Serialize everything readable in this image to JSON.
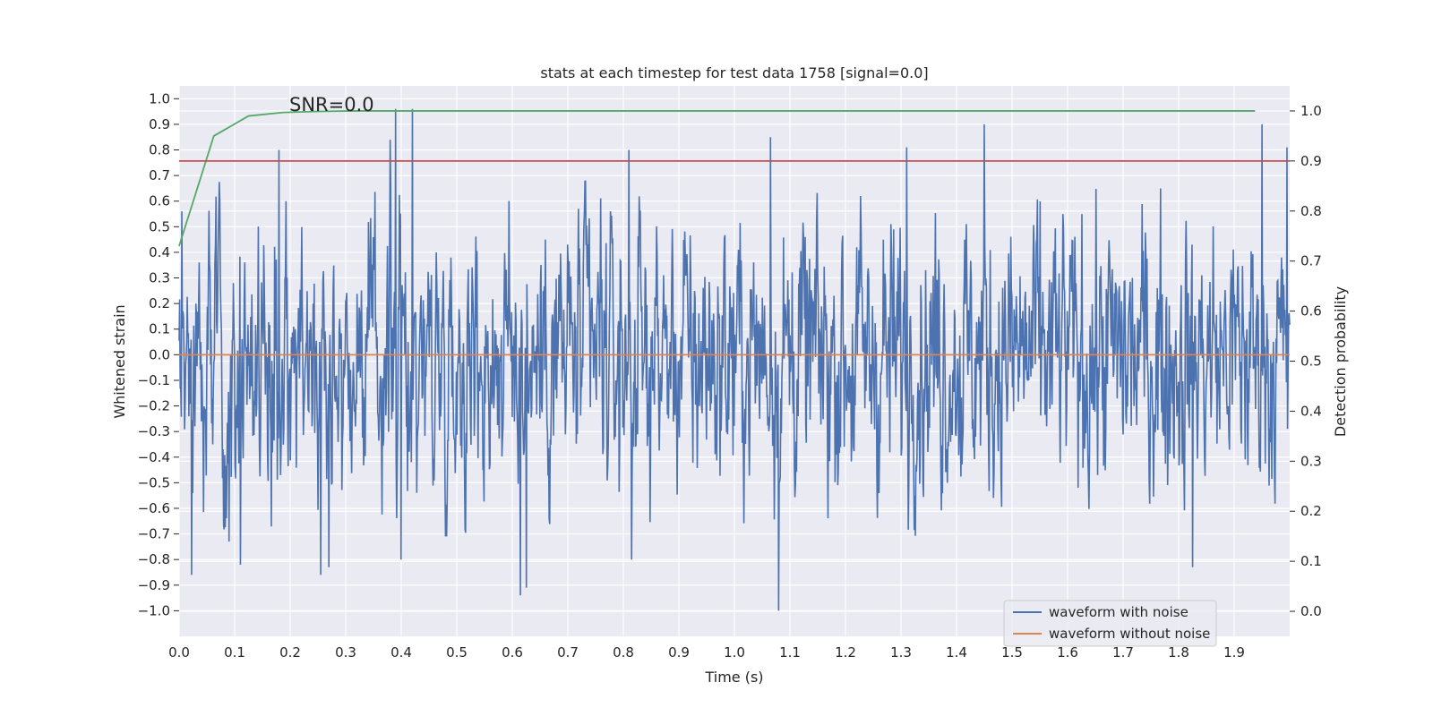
{
  "chart_data": {
    "type": "line",
    "title": "stats at each timestep for test data 1758 [signal=0.0]",
    "xlabel": "Time (s)",
    "ylabel": "Whitened strain",
    "y2label": "Detection probability",
    "annotation": "SNR=0.0",
    "xlim": [
      0.0,
      2.0
    ],
    "ylim": [
      -1.1,
      1.05
    ],
    "y2lim": [
      -0.05,
      1.05
    ],
    "xticks": [
      "0.0",
      "0.1",
      "0.2",
      "0.3",
      "0.4",
      "0.5",
      "0.6",
      "0.7",
      "0.8",
      "0.9",
      "1.0",
      "1.1",
      "1.2",
      "1.3",
      "1.4",
      "1.5",
      "1.6",
      "1.7",
      "1.8",
      "1.9"
    ],
    "yticks": [
      "1.0",
      "0.9",
      "0.8",
      "0.7",
      "0.6",
      "0.5",
      "0.4",
      "0.3",
      "0.2",
      "0.1",
      "0.0",
      "−0.1",
      "−0.2",
      "−0.3",
      "−0.4",
      "−0.5",
      "−0.6",
      "−0.7",
      "−0.8",
      "−0.9",
      "−1.0"
    ],
    "y2ticks": [
      "1.0",
      "0.9",
      "0.8",
      "0.7",
      "0.6",
      "0.5",
      "0.4",
      "0.3",
      "0.2",
      "0.1",
      "0.0"
    ],
    "series": [
      {
        "name": "waveform with noise",
        "axis": "left",
        "color": "#4c72b0",
        "note": "dense noisy whitened strain, 2048 samples over 2 s; notable extremes listed",
        "x_range": [
          0.0,
          2.0
        ],
        "n_samples": 2048,
        "amplitude_typical": 0.45,
        "peaks": [
          {
            "x": 0.005,
            "y": 0.56
          },
          {
            "x": 0.022,
            "y": -0.86
          },
          {
            "x": 0.09,
            "y": -0.73
          },
          {
            "x": 0.11,
            "y": -0.82
          },
          {
            "x": 0.18,
            "y": 0.8
          },
          {
            "x": 0.255,
            "y": -0.86
          },
          {
            "x": 0.27,
            "y": -0.83
          },
          {
            "x": 0.38,
            "y": 0.84
          },
          {
            "x": 0.39,
            "y": 0.96
          },
          {
            "x": 0.4,
            "y": -0.8
          },
          {
            "x": 0.42,
            "y": 0.96
          },
          {
            "x": 0.615,
            "y": -0.94
          },
          {
            "x": 0.625,
            "y": -0.91
          },
          {
            "x": 0.81,
            "y": 0.8
          },
          {
            "x": 0.815,
            "y": -0.8
          },
          {
            "x": 1.065,
            "y": 0.85
          },
          {
            "x": 1.08,
            "y": -1.0
          },
          {
            "x": 1.31,
            "y": 0.81
          },
          {
            "x": 1.45,
            "y": 0.9
          },
          {
            "x": 1.825,
            "y": -0.83
          },
          {
            "x": 1.95,
            "y": 0.9
          },
          {
            "x": 1.995,
            "y": 0.81
          }
        ]
      },
      {
        "name": "waveform without noise",
        "axis": "left",
        "color": "#dd8452",
        "x": [
          0.0,
          2.0
        ],
        "y": [
          0.0,
          0.0
        ]
      },
      {
        "name": "detection probability",
        "axis": "right",
        "color": "#55a868",
        "x": [
          0.0,
          0.0625,
          0.125,
          0.1875,
          0.25,
          0.3125,
          0.375,
          0.4375,
          0.5,
          0.75,
          1.0,
          1.25,
          1.5,
          1.75,
          1.9375
        ],
        "y": [
          0.73,
          0.95,
          0.99,
          0.997,
          0.999,
          1.0,
          1.0,
          1.0,
          1.0,
          1.0,
          1.0,
          1.0,
          1.0,
          1.0,
          1.0
        ]
      },
      {
        "name": "threshold",
        "axis": "right",
        "color": "#c44e52",
        "x": [
          0.0,
          2.0
        ],
        "y": [
          0.9,
          0.9
        ]
      }
    ],
    "legend": {
      "placement": "lower-right",
      "entries": [
        {
          "label": "waveform with noise",
          "color": "#4c72b0"
        },
        {
          "label": "waveform without noise",
          "color": "#dd8452"
        }
      ]
    },
    "grid": true,
    "style": {
      "background": "#eaeaf2",
      "gridColor": "#ffffff",
      "textColor": "#262626"
    }
  }
}
